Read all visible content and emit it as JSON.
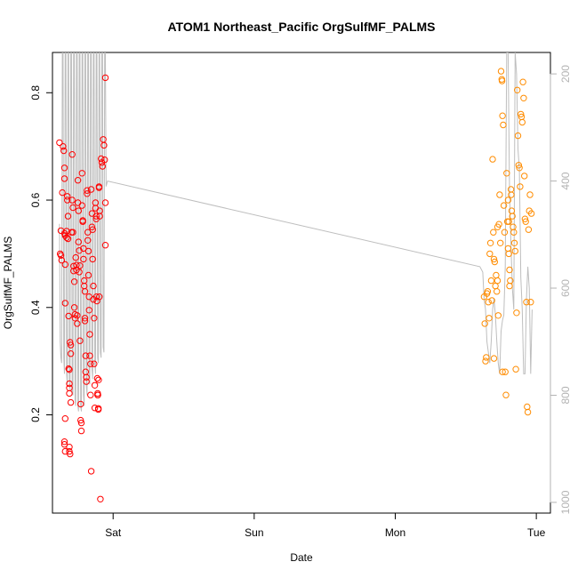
{
  "chart_data": {
    "type": "scatter",
    "title": "ATOM1 Northeast_Pacific OrgSulfMF_PALMS",
    "xlabel": "Date",
    "ylabel": "OrgSulfMF_PALMS",
    "xlim": [
      -0.43,
      3.1
    ],
    "ylim": [
      0.017,
      0.875
    ],
    "x_ticks": [
      {
        "value": 0,
        "label": "Sat"
      },
      {
        "value": 1,
        "label": "Sun"
      },
      {
        "value": 2,
        "label": "Mon"
      },
      {
        "value": 3,
        "label": "Tue"
      }
    ],
    "y_ticks": [
      {
        "value": 0.2,
        "label": "0.2"
      },
      {
        "value": 0.4,
        "label": "0.4"
      },
      {
        "value": 0.6,
        "label": "0.6"
      },
      {
        "value": 0.8,
        "label": "0.8"
      }
    ],
    "y2": {
      "label": "",
      "lim": [
        1020,
        160
      ],
      "ticks": [
        {
          "value": 200,
          "label": "200"
        },
        {
          "value": 400,
          "label": "400"
        },
        {
          "value": 600,
          "label": "600"
        },
        {
          "value": 800,
          "label": "800"
        },
        {
          "value": 1000,
          "label": "1000"
        }
      ],
      "color": "#b3b3b3"
    },
    "grid": false,
    "legend": "none",
    "series": [
      {
        "color": "#ff0000",
        "points": [
          [
            -0.38,
            0.707
          ],
          [
            -0.37,
            0.543
          ],
          [
            -0.375,
            0.5
          ],
          [
            -0.37,
            0.497
          ],
          [
            -0.365,
            0.488
          ],
          [
            -0.36,
            0.614
          ],
          [
            -0.355,
            0.7
          ],
          [
            -0.35,
            0.692
          ],
          [
            -0.345,
            0.66
          ],
          [
            -0.345,
            0.64
          ],
          [
            -0.345,
            0.538
          ],
          [
            -0.34,
            0.534
          ],
          [
            -0.34,
            0.48
          ],
          [
            -0.34,
            0.408
          ],
          [
            -0.34,
            0.193
          ],
          [
            -0.345,
            0.15
          ],
          [
            -0.345,
            0.145
          ],
          [
            -0.34,
            0.132
          ],
          [
            -0.33,
            0.542
          ],
          [
            -0.33,
            0.53
          ],
          [
            -0.325,
            0.607
          ],
          [
            -0.325,
            0.6
          ],
          [
            -0.32,
            0.57
          ],
          [
            -0.32,
            0.528
          ],
          [
            -0.315,
            0.384
          ],
          [
            -0.315,
            0.286
          ],
          [
            -0.31,
            0.284
          ],
          [
            -0.31,
            0.258
          ],
          [
            -0.31,
            0.25
          ],
          [
            -0.31,
            0.24
          ],
          [
            -0.31,
            0.14
          ],
          [
            -0.31,
            0.132
          ],
          [
            -0.305,
            0.127
          ],
          [
            -0.305,
            0.335
          ],
          [
            -0.3,
            0.33
          ],
          [
            -0.3,
            0.314
          ],
          [
            -0.3,
            0.223
          ],
          [
            -0.295,
            0.54
          ],
          [
            -0.29,
            0.685
          ],
          [
            -0.29,
            0.6
          ],
          [
            -0.285,
            0.586
          ],
          [
            -0.285,
            0.54
          ],
          [
            -0.28,
            0.477
          ],
          [
            -0.28,
            0.468
          ],
          [
            -0.275,
            0.448
          ],
          [
            -0.275,
            0.4
          ],
          [
            -0.27,
            0.387
          ],
          [
            -0.27,
            0.38
          ],
          [
            -0.265,
            0.493
          ],
          [
            -0.26,
            0.479
          ],
          [
            -0.26,
            0.47
          ],
          [
            -0.255,
            0.385
          ],
          [
            -0.255,
            0.37
          ],
          [
            -0.25,
            0.637
          ],
          [
            -0.25,
            0.595
          ],
          [
            -0.245,
            0.58
          ],
          [
            -0.245,
            0.522
          ],
          [
            -0.24,
            0.506
          ],
          [
            -0.24,
            0.466
          ],
          [
            -0.235,
            0.478
          ],
          [
            -0.235,
            0.338
          ],
          [
            -0.23,
            0.22
          ],
          [
            -0.23,
            0.19
          ],
          [
            -0.225,
            0.185
          ],
          [
            -0.225,
            0.17
          ],
          [
            -0.22,
            0.65
          ],
          [
            -0.22,
            0.59
          ],
          [
            -0.215,
            0.562
          ],
          [
            -0.215,
            0.56
          ],
          [
            -0.21,
            0.51
          ],
          [
            -0.21,
            0.49
          ],
          [
            -0.205,
            0.45
          ],
          [
            -0.205,
            0.44
          ],
          [
            -0.2,
            0.43
          ],
          [
            -0.2,
            0.38
          ],
          [
            -0.2,
            0.375
          ],
          [
            -0.195,
            0.31
          ],
          [
            -0.195,
            0.28
          ],
          [
            -0.19,
            0.27
          ],
          [
            -0.19,
            0.262
          ],
          [
            -0.185,
            0.618
          ],
          [
            -0.185,
            0.612
          ],
          [
            -0.18,
            0.54
          ],
          [
            -0.18,
            0.525
          ],
          [
            -0.175,
            0.505
          ],
          [
            -0.175,
            0.46
          ],
          [
            -0.17,
            0.42
          ],
          [
            -0.17,
            0.395
          ],
          [
            -0.165,
            0.35
          ],
          [
            -0.165,
            0.31
          ],
          [
            -0.16,
            0.295
          ],
          [
            -0.16,
            0.237
          ],
          [
            -0.155,
            0.095
          ],
          [
            -0.155,
            0.62
          ],
          [
            -0.15,
            0.575
          ],
          [
            -0.15,
            0.55
          ],
          [
            -0.145,
            0.545
          ],
          [
            -0.145,
            0.49
          ],
          [
            -0.14,
            0.44
          ],
          [
            -0.14,
            0.415
          ],
          [
            -0.135,
            0.38
          ],
          [
            -0.135,
            0.295
          ],
          [
            -0.13,
            0.255
          ],
          [
            -0.13,
            0.213
          ],
          [
            -0.125,
            0.595
          ],
          [
            -0.125,
            0.585
          ],
          [
            -0.12,
            0.57
          ],
          [
            -0.12,
            0.565
          ],
          [
            -0.118,
            0.42
          ],
          [
            -0.115,
            0.412
          ],
          [
            -0.112,
            0.268
          ],
          [
            -0.11,
            0.237
          ],
          [
            -0.108,
            0.237
          ],
          [
            -0.105,
            0.21
          ],
          [
            -0.105,
            0.212
          ],
          [
            -0.1,
            0.625
          ],
          [
            -0.1,
            0.623
          ],
          [
            -0.095,
            0.58
          ],
          [
            -0.095,
            0.57
          ],
          [
            -0.09,
            0.043
          ],
          [
            -0.085,
            0.677
          ],
          [
            -0.08,
            0.67
          ],
          [
            -0.075,
            0.663
          ],
          [
            -0.07,
            0.713
          ],
          [
            -0.065,
            0.702
          ],
          [
            -0.06,
            0.675
          ],
          [
            -0.055,
            0.828
          ],
          [
            -0.055,
            0.595
          ],
          [
            -0.055,
            0.516
          ],
          [
            -0.11,
            0.24
          ],
          [
            -0.103,
            0.265
          ],
          [
            -0.098,
            0.42
          ]
        ]
      },
      {
        "color": "#ff8c00",
        "points": [
          [
            2.63,
            0.42
          ],
          [
            2.635,
            0.37
          ],
          [
            2.64,
            0.3
          ],
          [
            2.645,
            0.307
          ],
          [
            2.65,
            0.426
          ],
          [
            2.655,
            0.43
          ],
          [
            2.66,
            0.41
          ],
          [
            2.665,
            0.38
          ],
          [
            2.67,
            0.5
          ],
          [
            2.675,
            0.52
          ],
          [
            2.68,
            0.45
          ],
          [
            2.685,
            0.413
          ],
          [
            2.69,
            0.676
          ],
          [
            2.695,
            0.54
          ],
          [
            2.7,
            0.49
          ],
          [
            2.705,
            0.485
          ],
          [
            2.71,
            0.44
          ],
          [
            2.715,
            0.46
          ],
          [
            2.72,
            0.43
          ],
          [
            2.725,
            0.45
          ],
          [
            2.73,
            0.385
          ],
          [
            2.735,
            0.555
          ],
          [
            2.74,
            0.61
          ],
          [
            2.745,
            0.52
          ],
          [
            2.75,
            0.84
          ],
          [
            2.755,
            0.825
          ],
          [
            2.757,
            0.822
          ],
          [
            2.76,
            0.757
          ],
          [
            2.765,
            0.74
          ],
          [
            2.77,
            0.59
          ],
          [
            2.775,
            0.54
          ],
          [
            2.78,
            0.28
          ],
          [
            2.785,
            0.237
          ],
          [
            2.79,
            0.65
          ],
          [
            2.795,
            0.56
          ],
          [
            2.8,
            0.51
          ],
          [
            2.805,
            0.5
          ],
          [
            2.81,
            0.47
          ],
          [
            2.815,
            0.45
          ],
          [
            2.82,
            0.62
          ],
          [
            2.822,
            0.61
          ],
          [
            2.825,
            0.58
          ],
          [
            2.83,
            0.57
          ],
          [
            2.835,
            0.55
          ],
          [
            2.84,
            0.54
          ],
          [
            2.845,
            0.52
          ],
          [
            2.85,
            0.505
          ],
          [
            2.855,
            0.285
          ],
          [
            2.86,
            0.39
          ],
          [
            2.865,
            0.805
          ],
          [
            2.87,
            0.72
          ],
          [
            2.875,
            0.665
          ],
          [
            2.88,
            0.66
          ],
          [
            2.885,
            0.625
          ],
          [
            2.89,
            0.76
          ],
          [
            2.895,
            0.755
          ],
          [
            2.9,
            0.745
          ],
          [
            2.905,
            0.82
          ],
          [
            2.91,
            0.79
          ],
          [
            2.915,
            0.645
          ],
          [
            2.92,
            0.565
          ],
          [
            2.925,
            0.56
          ],
          [
            2.93,
            0.41
          ],
          [
            2.935,
            0.215
          ],
          [
            2.94,
            0.205
          ],
          [
            2.945,
            0.545
          ],
          [
            2.95,
            0.58
          ],
          [
            2.955,
            0.61
          ],
          [
            2.96,
            0.41
          ],
          [
            2.965,
            0.575
          ],
          [
            2.8,
            0.6
          ],
          [
            2.805,
            0.56
          ],
          [
            2.81,
            0.44
          ],
          [
            2.76,
            0.28
          ],
          [
            2.725,
            0.55
          ],
          [
            2.7,
            0.305
          ]
        ]
      }
    ],
    "line_series": {
      "color": "#bebebe",
      "axis": "y2",
      "x": [
        -0.38,
        -0.375,
        -0.37,
        -0.365,
        -0.36,
        -0.355,
        -0.35,
        -0.345,
        -0.34,
        -0.335,
        -0.33,
        -0.325,
        -0.32,
        -0.315,
        -0.31,
        -0.305,
        -0.3,
        -0.295,
        -0.29,
        -0.285,
        -0.28,
        -0.275,
        -0.27,
        -0.265,
        -0.26,
        -0.255,
        -0.25,
        -0.245,
        -0.24,
        -0.235,
        -0.23,
        -0.225,
        -0.22,
        -0.215,
        -0.21,
        -0.205,
        -0.2,
        -0.195,
        -0.19,
        -0.185,
        -0.18,
        -0.175,
        -0.17,
        -0.165,
        -0.16,
        -0.155,
        -0.15,
        -0.145,
        -0.14,
        -0.135,
        -0.13,
        -0.125,
        -0.12,
        -0.115,
        -0.11,
        -0.105,
        -0.1,
        -0.095,
        -0.09,
        -0.085,
        -0.08,
        -0.075,
        -0.07,
        -0.065,
        -0.06,
        -0.055,
        -0.05,
        -0.04,
        2.6,
        2.62,
        2.63,
        2.64,
        2.65,
        2.66,
        2.67,
        2.68,
        2.69,
        2.7,
        2.71,
        2.72,
        2.73,
        2.74,
        2.75,
        2.76,
        2.77,
        2.78,
        2.79,
        2.8,
        2.81,
        2.82,
        2.83,
        2.84,
        2.85,
        2.86,
        2.87,
        2.88,
        2.89,
        2.9,
        2.91,
        2.92,
        2.93,
        2.94,
        2.95,
        2.96,
        2.97
      ],
      "y": [
        480,
        700,
        730,
        740,
        160,
        160,
        730,
        760,
        160,
        160,
        760,
        780,
        160,
        160,
        770,
        790,
        160,
        160,
        790,
        800,
        160,
        160,
        810,
        820,
        160,
        160,
        820,
        830,
        160,
        160,
        820,
        830,
        160,
        160,
        800,
        820,
        160,
        160,
        780,
        800,
        160,
        160,
        760,
        780,
        160,
        160,
        750,
        770,
        160,
        160,
        740,
        760,
        160,
        160,
        730,
        740,
        160,
        160,
        720,
        730,
        160,
        160,
        710,
        720,
        160,
        160,
        410,
        400,
        560,
        570,
        620,
        640,
        700,
        720,
        740,
        700,
        640,
        620,
        650,
        700,
        740,
        760,
        680,
        660,
        650,
        560,
        160,
        160,
        420,
        520,
        600,
        640,
        160,
        200,
        340,
        380,
        580,
        640,
        760,
        760,
        620,
        560,
        600,
        760,
        640
      ]
    }
  }
}
